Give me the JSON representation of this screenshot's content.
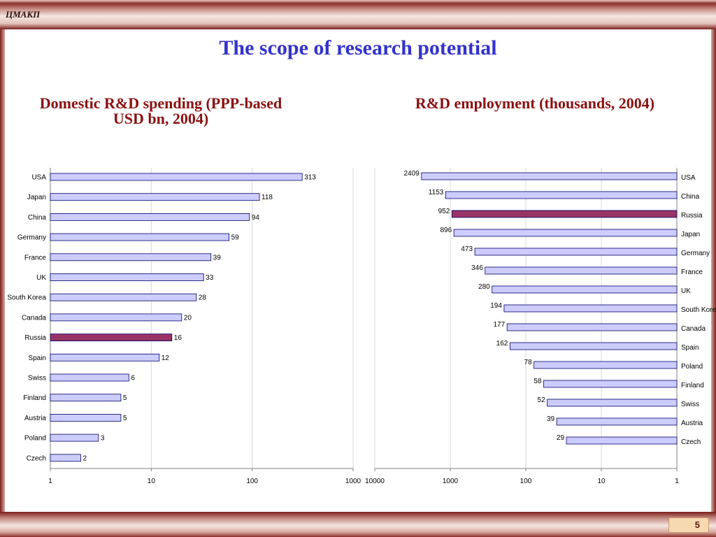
{
  "header": {
    "brand": "ЦМАКП"
  },
  "slide": {
    "title": "The scope of research potential",
    "page_number": "5"
  },
  "colors": {
    "bar_fill": "#ccccff",
    "highlight_fill": "#993366",
    "bar_stroke": "#000066",
    "title": "#3333cc",
    "subtitle": "#8b1010"
  },
  "chart_data": [
    {
      "type": "bar",
      "orientation": "horizontal",
      "title": "Domestic R&D spending (PPP-based USD bn, 2004)",
      "x_scale": "log",
      "xlim": [
        1,
        1000
      ],
      "x_ticks": [
        "1",
        "10",
        "100",
        "1000"
      ],
      "categories": [
        "USA",
        "Japan",
        "China",
        "Germany",
        "France",
        "UK",
        "South Korea",
        "Canada",
        "Russia",
        "Spain",
        "Swiss",
        "Finland",
        "Austria",
        "Poland",
        "Czech"
      ],
      "values": [
        313,
        118,
        94,
        59,
        39,
        33,
        28,
        20,
        16,
        12,
        6,
        5,
        5,
        3,
        2
      ],
      "highlight": "Russia",
      "grid": "vertical"
    },
    {
      "type": "bar",
      "orientation": "horizontal",
      "title": "R&D employment (thousands, 2004)",
      "x_scale": "log",
      "x_reversed": true,
      "xlim": [
        1,
        10000
      ],
      "x_ticks": [
        "10000",
        "1000",
        "100",
        "10",
        "1"
      ],
      "categories": [
        "USA",
        "China",
        "Russia",
        "Japan",
        "Germany",
        "France",
        "UK",
        "South Korea",
        "Canada",
        "Spain",
        "Poland",
        "Finland",
        "Swiss",
        "Austria",
        "Czech"
      ],
      "values": [
        2409,
        1153,
        952,
        896,
        473,
        346,
        280,
        194,
        177,
        162,
        78,
        58,
        52,
        39,
        29
      ],
      "highlight": "Russia",
      "grid": "vertical"
    }
  ]
}
